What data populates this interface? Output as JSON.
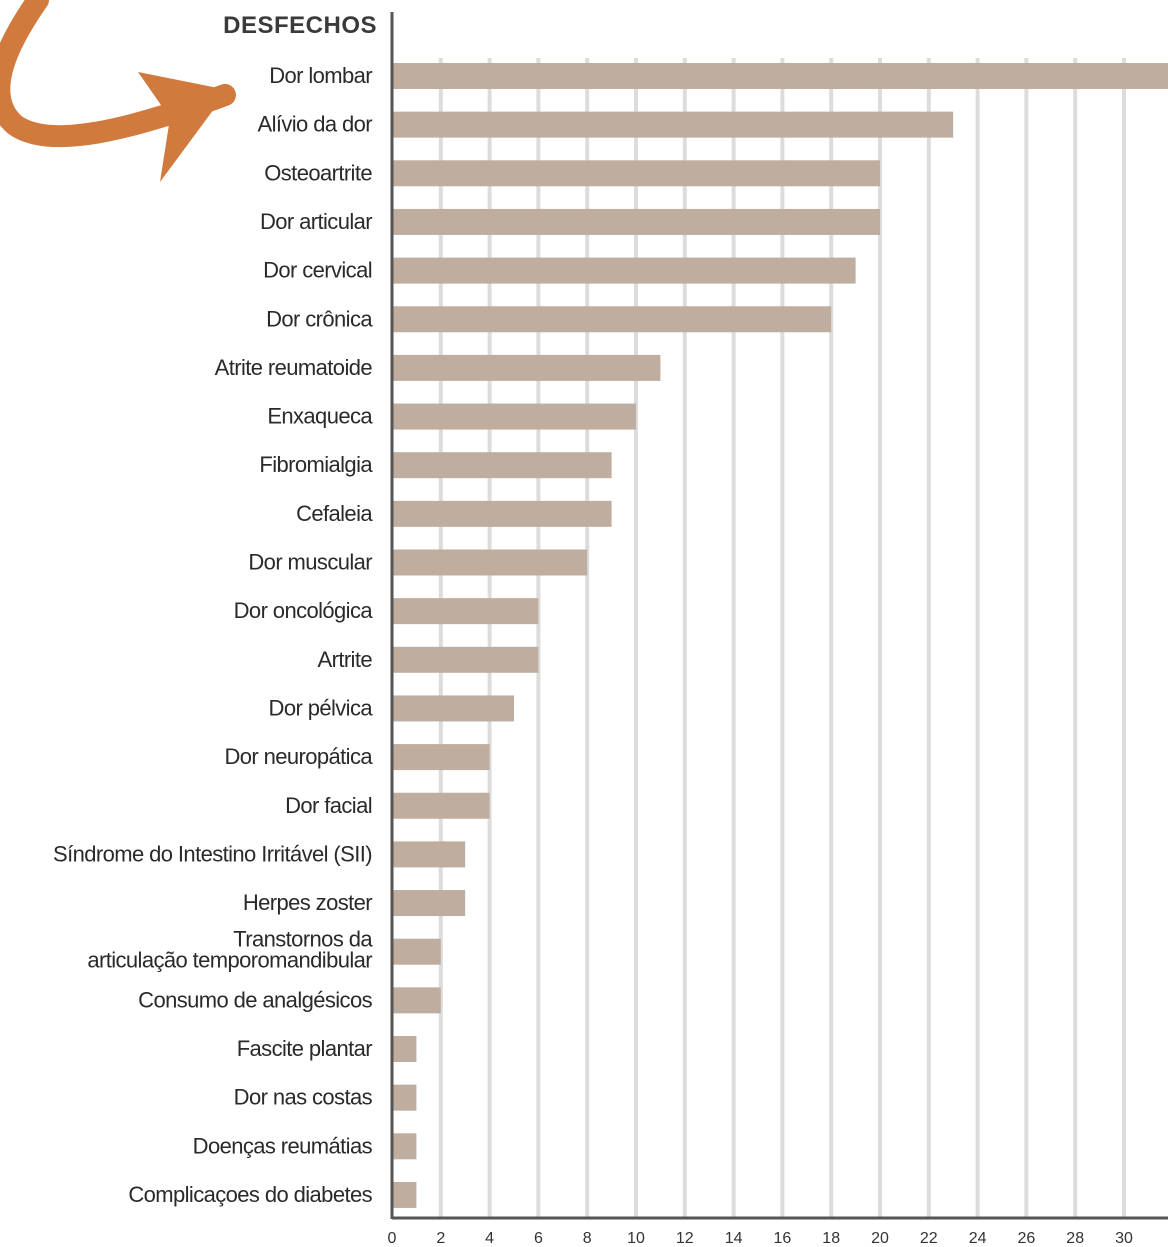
{
  "chart_data": {
    "type": "bar",
    "orientation": "horizontal",
    "title": "",
    "ylabel": "DESFECHOS",
    "xlabel": "",
    "categories": [
      "Dor lombar",
      "Alívio da dor",
      "Osteoartrite",
      "Dor articular",
      "Dor cervical",
      "Dor crônica",
      "Atrite reumatoide",
      "Enxaqueca",
      "Fibromialgia",
      "Cefaleia",
      "Dor muscular",
      "Dor oncológica",
      "Artrite",
      "Dor pélvica",
      "Dor neuropática",
      "Dor facial",
      "Síndrome do Intestino Irritável (SII)",
      "Herpes zoster",
      "Transtornos da articulação temporomandibular",
      "Consumo de analgésicos",
      "Fascite plantar",
      "Dor nas costas",
      "Doenças reumátias",
      "Complicaçoes do diabetes"
    ],
    "values": [
      32,
      23,
      20,
      20,
      19,
      18,
      11,
      10,
      9,
      9,
      8,
      6,
      6,
      5,
      4,
      4,
      3,
      3,
      2,
      2,
      1,
      1,
      1,
      1
    ],
    "xticks": [
      "0",
      "2",
      "4",
      "6",
      "8",
      "10",
      "12",
      "14",
      "16",
      "18",
      "20",
      "22",
      "24",
      "26",
      "28",
      "30"
    ],
    "xlim": [
      0,
      32
    ],
    "grid": true,
    "colors": {
      "bar": "#bfaea0",
      "grid": "#dcdcdc",
      "axis": "#555555",
      "arrow": "#d07a3e"
    }
  }
}
